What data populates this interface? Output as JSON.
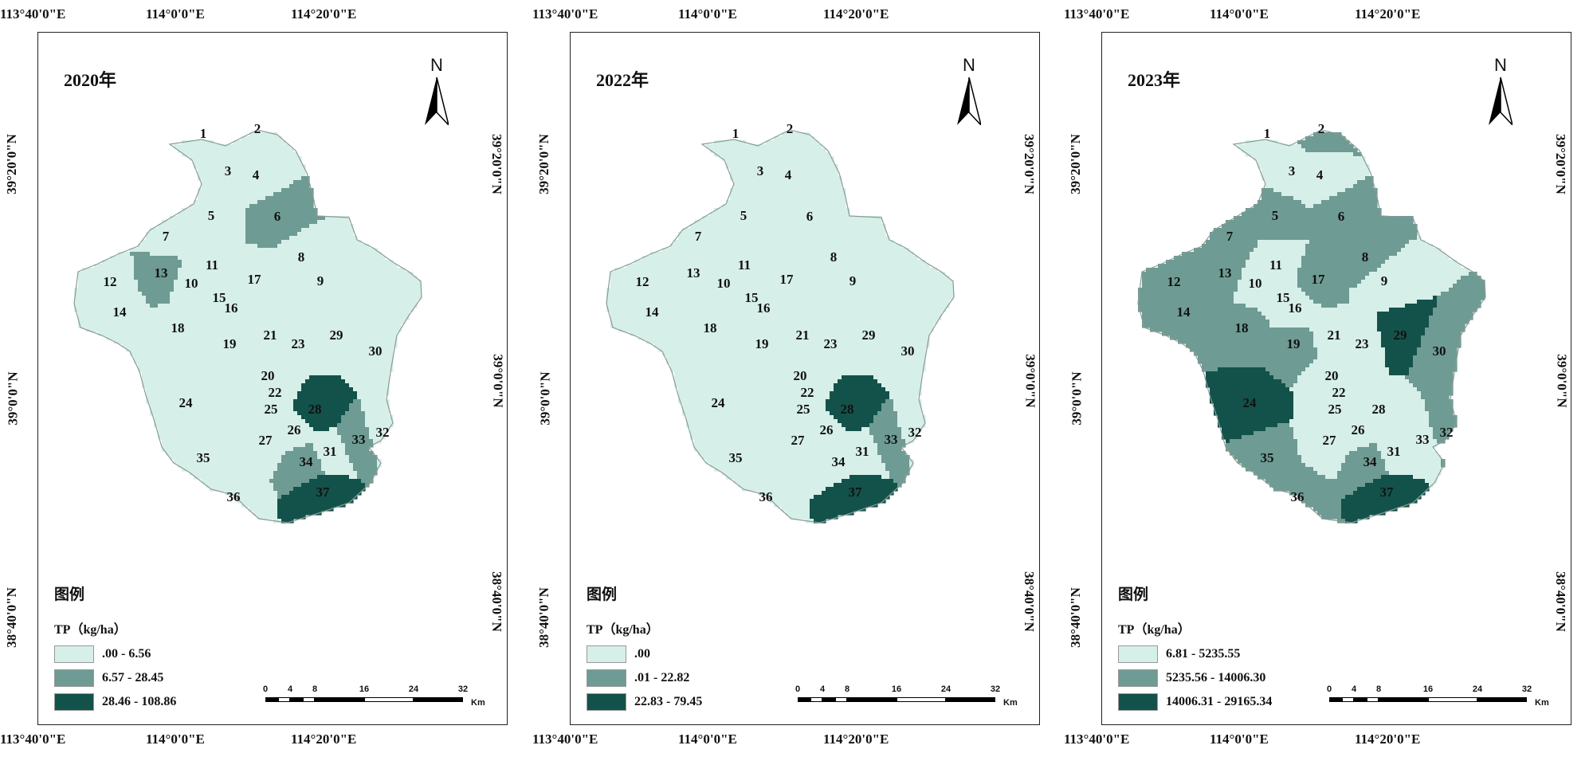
{
  "coordinates": {
    "top_lon": [
      "113°40'0\"E",
      "114°0'0\"E",
      "114°20'0\"E"
    ],
    "bottom_lon": [
      "113°40'0\"E",
      "114°0'0\"E",
      "114°20'0\"E"
    ],
    "lat": [
      "39°20'0\"N",
      "39°0'0\"N",
      "38°40'0\"N"
    ]
  },
  "north_arrow": {
    "letter": "N",
    "icon": "north-arrow-icon"
  },
  "legend_title": "图例",
  "legend_subtitle": "TP（kg/ha）",
  "colors": {
    "low": "#d6efe8",
    "mid": "#6e9b93",
    "high": "#13524a",
    "outline": "#8a9a97"
  },
  "scale_bar": {
    "ticks": [
      "0",
      "4",
      "8",
      "16",
      "24",
      "32"
    ],
    "unit": "Km"
  },
  "panels": [
    {
      "year": "2020年",
      "legend": [
        {
          "label": ".00 - 6.56",
          "color": "#d6efe8"
        },
        {
          "label": "6.57 - 28.45",
          "color": "#6e9b93"
        },
        {
          "label": "28.46 - 108.86",
          "color": "#13524a"
        }
      ],
      "classes": {
        "6": 1,
        "13": 1,
        "33": 1,
        "34": 1,
        "28": 2,
        "37": 2
      }
    },
    {
      "year": "2022年",
      "legend": [
        {
          "label": ".00",
          "color": "#d6efe8"
        },
        {
          "label": ".01 - 22.82",
          "color": "#6e9b93"
        },
        {
          "label": "22.83 - 79.45",
          "color": "#13524a"
        }
      ],
      "classes": {
        "33": 1,
        "28": 2,
        "37": 2
      }
    },
    {
      "year": "2023年",
      "legend": [
        {
          "label": "6.81 - 5235.55",
          "color": "#d6efe8"
        },
        {
          "label": "5235.56 - 14006.30",
          "color": "#6e9b93"
        },
        {
          "label": "14006.31 - 29165.34",
          "color": "#13524a"
        }
      ],
      "classes": {
        "2": 1,
        "5": 1,
        "6": 1,
        "7": 1,
        "8": 1,
        "12": 1,
        "13": 1,
        "14": 1,
        "17": 1,
        "18": 1,
        "19": 1,
        "30": 1,
        "32": 1,
        "34": 1,
        "35": 1,
        "36": 1,
        "24": 2,
        "29": 2,
        "37": 2
      }
    }
  ],
  "region_labels": [
    "1",
    "2",
    "3",
    "4",
    "5",
    "6",
    "7",
    "8",
    "9",
    "10",
    "11",
    "12",
    "13",
    "14",
    "15",
    "16",
    "17",
    "18",
    "19",
    "20",
    "21",
    "22",
    "23",
    "24",
    "25",
    "26",
    "27",
    "28",
    "29",
    "30",
    "31",
    "32",
    "33",
    "34",
    "35",
    "36",
    "37"
  ]
}
